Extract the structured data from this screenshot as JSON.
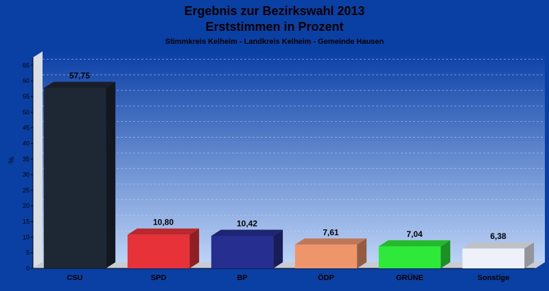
{
  "chart_data": {
    "type": "bar",
    "title": "Ergebnis zur Bezirkswahl 2013",
    "subtitle": "Erststimmen in Prozent",
    "caption": "Stimmkreis Kelheim - Landkreis Kelheim - Gemeinde Hausen",
    "ylabel": "%",
    "xlabel": "",
    "ylim": [
      0,
      67.5
    ],
    "yticks": [
      0,
      5,
      10,
      15,
      20,
      25,
      30,
      35,
      40,
      45,
      50,
      55,
      60,
      65
    ],
    "grid": true,
    "categories": [
      "CSU",
      "SPD",
      "BP",
      "ÖDP",
      "GRÜNE",
      "Sonstige"
    ],
    "values": [
      57.75,
      10.8,
      10.42,
      7.61,
      7.04,
      6.38
    ],
    "value_labels": [
      "57,75",
      "10,80",
      "10,42",
      "7,61",
      "7,04",
      "6,38"
    ],
    "colors": [
      "#1e2734",
      "#e8323a",
      "#262e8f",
      "#ef956b",
      "#2ee83a",
      "#eef1fa"
    ]
  }
}
